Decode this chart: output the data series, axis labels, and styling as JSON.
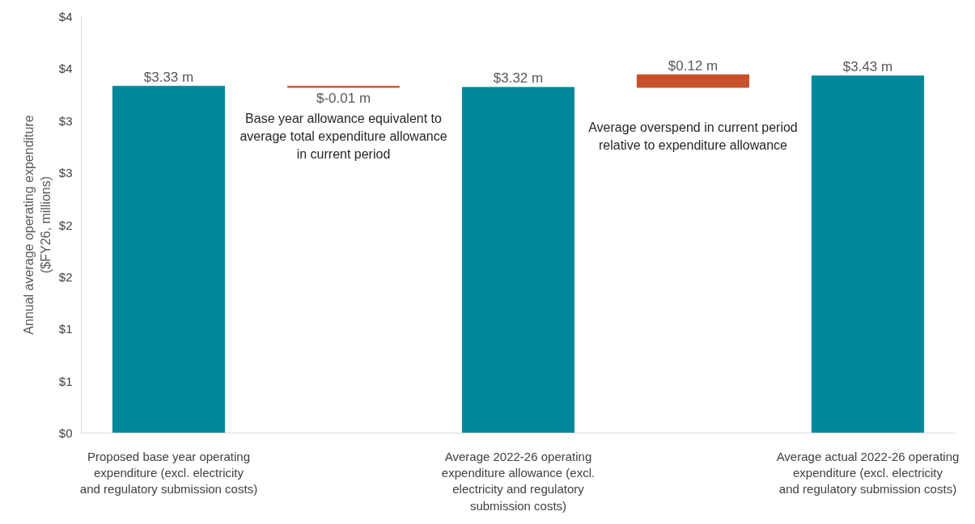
{
  "chart_data": {
    "type": "bar",
    "ylabel": "Annual average operating expenditure ($FY26, millions)",
    "categories": [
      "Proposed base year operating expenditure (excl. electricity and regulatory submission costs)",
      null,
      "Average 2022-26 operating expenditure allowance (excl. electricity and regulatory submission costs)",
      null,
      "Average actual 2022-26 operating expenditure (excl. electricity and regulatory submission costs)"
    ],
    "values": [
      3.33,
      -0.01,
      3.32,
      0.12,
      3.43
    ],
    "base": [
      0,
      3.33,
      0,
      3.32,
      0
    ],
    "colors": [
      "#00879a",
      "#c8502a",
      "#00879a",
      "#c8502a",
      "#00879a"
    ],
    "value_labels": [
      "$3.33 m",
      "$-0.01 m",
      "$3.32 m",
      "$0.12 m",
      "$3.43 m"
    ],
    "annotations": [
      "Base year allowance equivalent to average total expenditure allowance in current period",
      "Average overspend in current period relative to expenditure allowance"
    ],
    "ylim": [
      0,
      4
    ],
    "yticks": [
      {
        "value": 0,
        "label": "$0"
      },
      {
        "value": 0.5,
        "label": "$1"
      },
      {
        "value": 1,
        "label": "$1"
      },
      {
        "value": 1.5,
        "label": "$2"
      },
      {
        "value": 2,
        "label": "$2"
      },
      {
        "value": 2.5,
        "label": "$3"
      },
      {
        "value": 3,
        "label": "$3"
      },
      {
        "value": 3.5,
        "label": "$4"
      },
      {
        "value": 4,
        "label": "$4"
      }
    ],
    "grid": false
  }
}
